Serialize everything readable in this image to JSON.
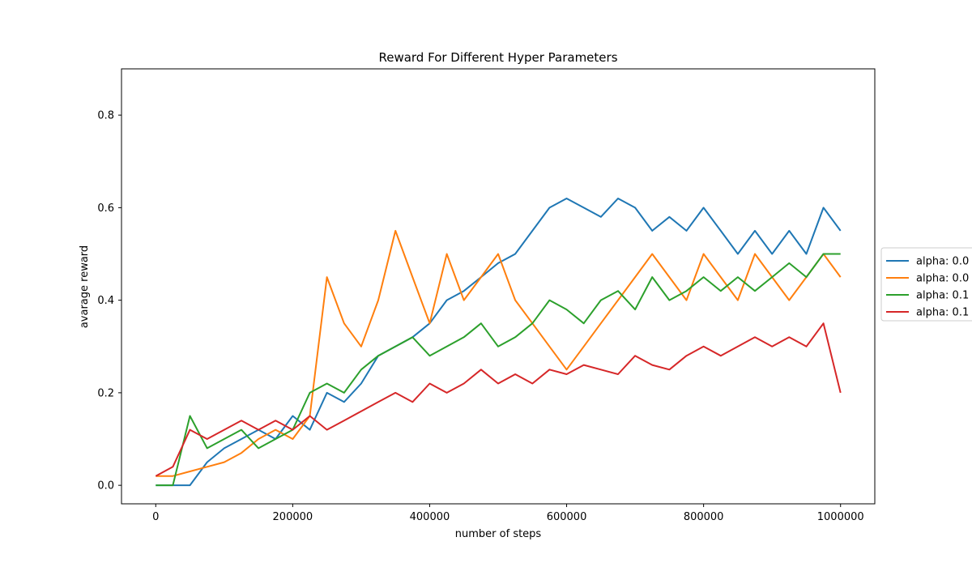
{
  "chart_data": {
    "type": "line",
    "title": "Reward For Different Hyper Parameters",
    "xlabel": "number of steps",
    "ylabel": "avarage reward",
    "xlim": [
      -50000,
      1050000
    ],
    "ylim": [
      -0.04,
      0.9
    ],
    "xticks": [
      0,
      200000,
      400000,
      600000,
      800000,
      1000000
    ],
    "xtick_labels": [
      "0",
      "200000",
      "400000",
      "600000",
      "800000",
      "1000000"
    ],
    "yticks": [
      0.0,
      0.2,
      0.4,
      0.6,
      0.8
    ],
    "ytick_labels": [
      "0.0",
      "0.2",
      "0.4",
      "0.6",
      "0.8"
    ],
    "grid": false,
    "legend_position": "right, outside plot (clipped)",
    "series": [
      {
        "name": "alpha: 0.0",
        "color": "#1f77b4",
        "x": [
          0,
          25000,
          50000,
          75000,
          100000,
          125000,
          150000,
          175000,
          200000,
          225000,
          250000,
          275000,
          300000,
          325000,
          350000,
          375000,
          400000,
          425000,
          450000,
          475000,
          500000,
          525000,
          550000,
          575000,
          600000,
          625000,
          650000,
          675000,
          700000,
          725000,
          750000,
          775000,
          800000,
          825000,
          850000,
          875000,
          900000,
          925000,
          950000,
          975000,
          1000000
        ],
        "y": [
          0.0,
          0.0,
          0.0,
          0.05,
          0.08,
          0.1,
          0.12,
          0.1,
          0.15,
          0.12,
          0.2,
          0.18,
          0.22,
          0.28,
          0.3,
          0.32,
          0.35,
          0.4,
          0.42,
          0.45,
          0.48,
          0.5,
          0.55,
          0.6,
          0.62,
          0.6,
          0.58,
          0.62,
          0.6,
          0.55,
          0.58,
          0.55,
          0.6,
          0.55,
          0.5,
          0.55,
          0.5,
          0.55,
          0.5,
          0.6,
          0.55
        ]
      },
      {
        "name": "alpha: 0.0",
        "color": "#ff7f0e",
        "x": [
          0,
          25000,
          50000,
          75000,
          100000,
          125000,
          150000,
          175000,
          200000,
          225000,
          250000,
          275000,
          300000,
          325000,
          350000,
          375000,
          400000,
          425000,
          450000,
          475000,
          500000,
          525000,
          550000,
          575000,
          600000,
          625000,
          650000,
          675000,
          700000,
          725000,
          750000,
          775000,
          800000,
          825000,
          850000,
          875000,
          900000,
          925000,
          950000,
          975000,
          1000000
        ],
        "y": [
          0.02,
          0.02,
          0.03,
          0.04,
          0.05,
          0.07,
          0.1,
          0.12,
          0.1,
          0.15,
          0.45,
          0.35,
          0.3,
          0.4,
          0.55,
          0.45,
          0.35,
          0.5,
          0.4,
          0.45,
          0.5,
          0.4,
          0.35,
          0.3,
          0.25,
          0.3,
          0.35,
          0.4,
          0.45,
          0.5,
          0.45,
          0.4,
          0.5,
          0.45,
          0.4,
          0.5,
          0.45,
          0.4,
          0.45,
          0.5,
          0.45
        ]
      },
      {
        "name": "alpha: 0.1",
        "color": "#2ca02c",
        "x": [
          0,
          25000,
          50000,
          75000,
          100000,
          125000,
          150000,
          175000,
          200000,
          225000,
          250000,
          275000,
          300000,
          325000,
          350000,
          375000,
          400000,
          425000,
          450000,
          475000,
          500000,
          525000,
          550000,
          575000,
          600000,
          625000,
          650000,
          675000,
          700000,
          725000,
          750000,
          775000,
          800000,
          825000,
          850000,
          875000,
          900000,
          925000,
          950000,
          975000,
          1000000
        ],
        "y": [
          0.0,
          0.0,
          0.15,
          0.08,
          0.1,
          0.12,
          0.08,
          0.1,
          0.12,
          0.2,
          0.22,
          0.2,
          0.25,
          0.28,
          0.3,
          0.32,
          0.28,
          0.3,
          0.32,
          0.35,
          0.3,
          0.32,
          0.35,
          0.4,
          0.38,
          0.35,
          0.4,
          0.42,
          0.38,
          0.45,
          0.4,
          0.42,
          0.45,
          0.42,
          0.45,
          0.42,
          0.45,
          0.48,
          0.45,
          0.5,
          0.5
        ]
      },
      {
        "name": "alpha: 0.1",
        "color": "#d62728",
        "x": [
          0,
          25000,
          50000,
          75000,
          100000,
          125000,
          150000,
          175000,
          200000,
          225000,
          250000,
          275000,
          300000,
          325000,
          350000,
          375000,
          400000,
          425000,
          450000,
          475000,
          500000,
          525000,
          550000,
          575000,
          600000,
          625000,
          650000,
          675000,
          700000,
          725000,
          750000,
          775000,
          800000,
          825000,
          850000,
          875000,
          900000,
          925000,
          950000,
          975000,
          1000000
        ],
        "y": [
          0.02,
          0.04,
          0.12,
          0.1,
          0.12,
          0.14,
          0.12,
          0.14,
          0.12,
          0.15,
          0.12,
          0.14,
          0.16,
          0.18,
          0.2,
          0.18,
          0.22,
          0.2,
          0.22,
          0.25,
          0.22,
          0.24,
          0.22,
          0.25,
          0.24,
          0.26,
          0.25,
          0.24,
          0.28,
          0.26,
          0.25,
          0.28,
          0.3,
          0.28,
          0.3,
          0.32,
          0.3,
          0.32,
          0.3,
          0.35,
          0.2
        ]
      }
    ]
  }
}
